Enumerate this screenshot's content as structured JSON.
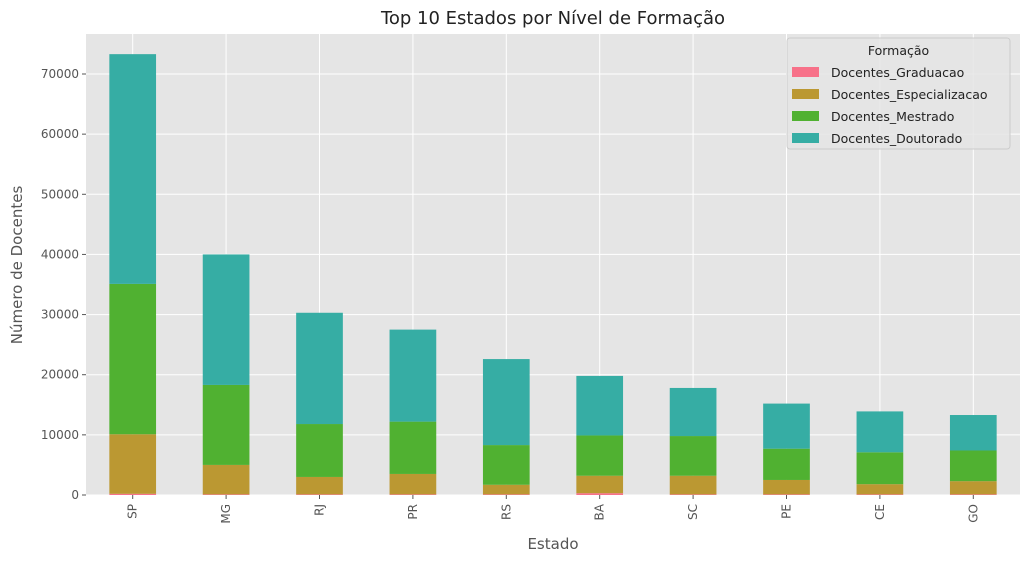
{
  "chart_data": {
    "type": "bar",
    "stacked": true,
    "title": "Top 10 Estados por Nível de Formação",
    "xlabel": "Estado",
    "ylabel": "Número de Docentes",
    "categories": [
      "SP",
      "MG",
      "RJ",
      "PR",
      "RS",
      "BA",
      "SC",
      "PE",
      "CE",
      "GO"
    ],
    "ylim": [
      0,
      76650
    ],
    "yticks": [
      0,
      10000,
      20000,
      30000,
      40000,
      50000,
      60000,
      70000
    ],
    "ytick_labels": [
      "0",
      "10000",
      "20000",
      "30000",
      "40000",
      "50000",
      "60000",
      "70000"
    ],
    "grid": true,
    "legend": {
      "title": "Formação",
      "position": "top-right"
    },
    "series": [
      {
        "name": "Docentes_Graduacao",
        "color": "#f77189",
        "values": [
          200,
          100,
          100,
          100,
          100,
          300,
          100,
          100,
          100,
          100
        ]
      },
      {
        "name": "Docentes_Especializacao",
        "color": "#bb9832",
        "values": [
          9900,
          4900,
          2900,
          3400,
          1600,
          2900,
          3100,
          2400,
          1700,
          2200
        ]
      },
      {
        "name": "Docentes_Mestrado",
        "color": "#50b131",
        "values": [
          25000,
          13300,
          8800,
          8700,
          6600,
          6700,
          6600,
          5200,
          5300,
          5100
        ]
      },
      {
        "name": "Docentes_Doutorado",
        "color": "#36ada4",
        "values": [
          38200,
          21700,
          18500,
          15300,
          14300,
          9900,
          8000,
          7500,
          6800,
          5900
        ]
      }
    ]
  }
}
